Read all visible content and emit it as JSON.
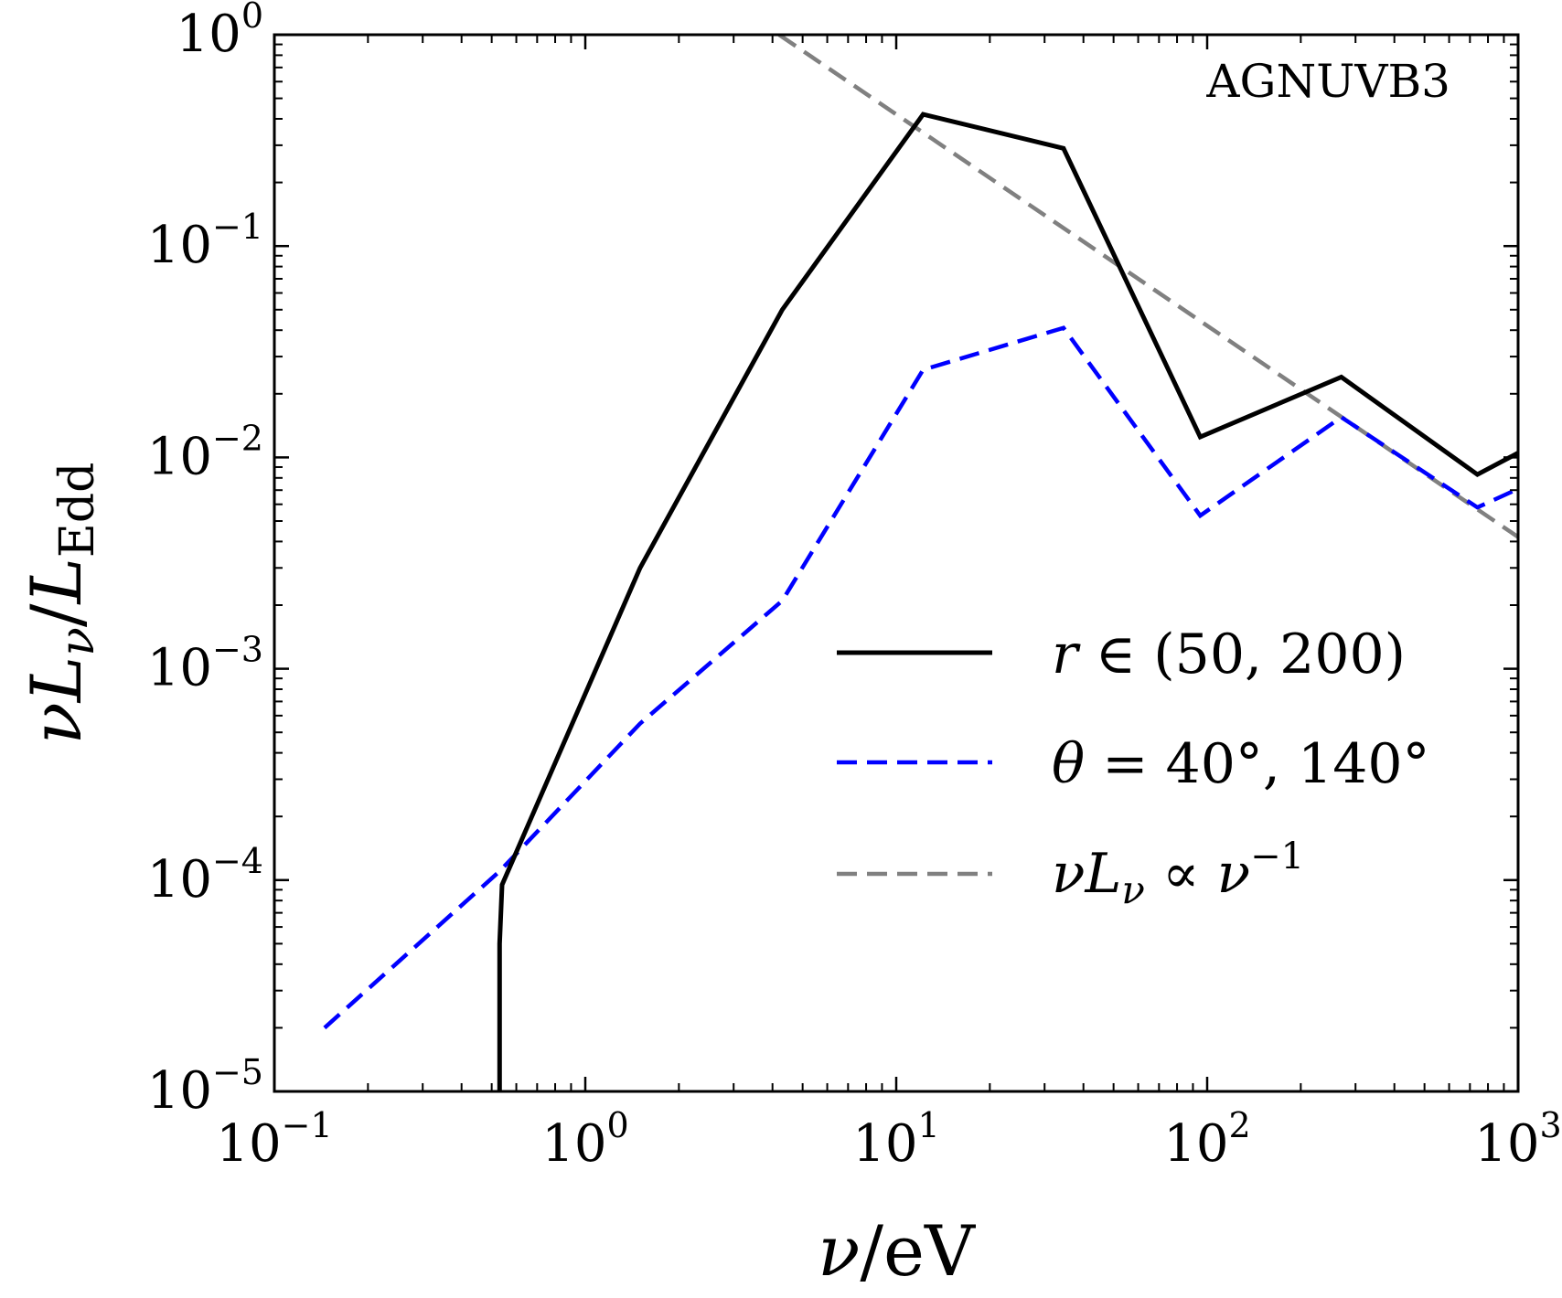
{
  "chart_data": {
    "type": "line",
    "annotation": "AGNUVB3",
    "xlabel": "ν/eV",
    "ylabel": "νL_ν/L_Edd",
    "x_scale": "log",
    "y_scale": "log",
    "xlim": [
      0.1,
      1000
    ],
    "ylim": [
      1e-05,
      1
    ],
    "grid": false,
    "legend_position": "center-right",
    "x_ticks": [
      {
        "value": 0.1,
        "base": "10",
        "exp": "−1"
      },
      {
        "value": 1,
        "base": "10",
        "exp": "0"
      },
      {
        "value": 10,
        "base": "10",
        "exp": "1"
      },
      {
        "value": 100,
        "base": "10",
        "exp": "2"
      },
      {
        "value": 1000,
        "base": "10",
        "exp": "3"
      }
    ],
    "y_ticks": [
      {
        "value": 1e-05,
        "base": "10",
        "exp": "−5"
      },
      {
        "value": 0.0001,
        "base": "10",
        "exp": "−4"
      },
      {
        "value": 0.001,
        "base": "10",
        "exp": "−3"
      },
      {
        "value": 0.01,
        "base": "10",
        "exp": "−2"
      },
      {
        "value": 0.1,
        "base": "10",
        "exp": "−1"
      },
      {
        "value": 1,
        "base": "10",
        "exp": "0"
      }
    ],
    "series": [
      {
        "name": "r ∈ (50, 200)",
        "color": "#000000",
        "dash": "solid",
        "x": [
          0.53,
          0.53,
          0.54,
          1.5,
          4.3,
          12.2,
          34.5,
          95,
          270,
          740,
          1000
        ],
        "y": [
          1e-05,
          5e-05,
          9.5e-05,
          0.003,
          0.05,
          0.42,
          0.29,
          0.0125,
          0.024,
          0.0083,
          0.0105
        ]
      },
      {
        "name": "θ = 40°, 140°",
        "color": "#0000ff",
        "dash": "dashed",
        "x": [
          0.145,
          0.53,
          1.5,
          4.3,
          12.2,
          34.5,
          95,
          270,
          740,
          1000
        ],
        "y": [
          2e-05,
          0.00011,
          0.00055,
          0.0021,
          0.026,
          0.041,
          0.0053,
          0.0155,
          0.0058,
          0.0071
        ]
      },
      {
        "name": "νL_ν ∝ ν^−1",
        "color": "#808080",
        "dash": "dashed",
        "x": [
          4.2,
          1000
        ],
        "y": [
          1.0,
          0.0042
        ]
      }
    ],
    "legend": [
      {
        "label": "r ∈ (50, 200)",
        "color": "#000000",
        "dash": "solid"
      },
      {
        "label": "θ = 40°, 140°",
        "color": "#0000ff",
        "dash": "dashed"
      },
      {
        "label": "νL_ν ∝ ν^−1",
        "color": "#808080",
        "dash": "dashed"
      }
    ]
  }
}
